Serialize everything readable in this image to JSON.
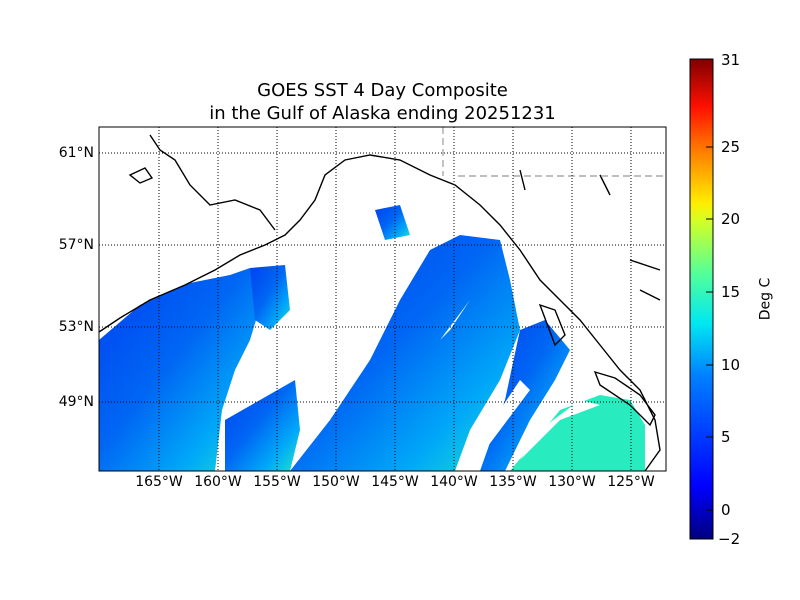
{
  "title": {
    "line1": "GOES SST 4 Day Composite",
    "line2": "in the Gulf of Alaska ending 20251231"
  },
  "map": {
    "projection": "cylindrical",
    "lat_labels": [
      "61°N",
      "57°N",
      "53°N",
      "49°N"
    ],
    "lon_labels": [
      "165°W",
      "160°W",
      "155°W",
      "150°W",
      "145°W",
      "140°W",
      "135°W",
      "130°W",
      "125°W"
    ],
    "grid": "dotted",
    "land_color": "#ffffff",
    "cloud_mask_color": "#ffffff",
    "coastline_color": "#000000"
  },
  "colorbar": {
    "label": "Deg C",
    "colormap": "jet",
    "min": -2,
    "max": 31,
    "ticks": [
      "31",
      "25",
      "20",
      "15",
      "10",
      "5",
      "0",
      "−2"
    ]
  }
}
